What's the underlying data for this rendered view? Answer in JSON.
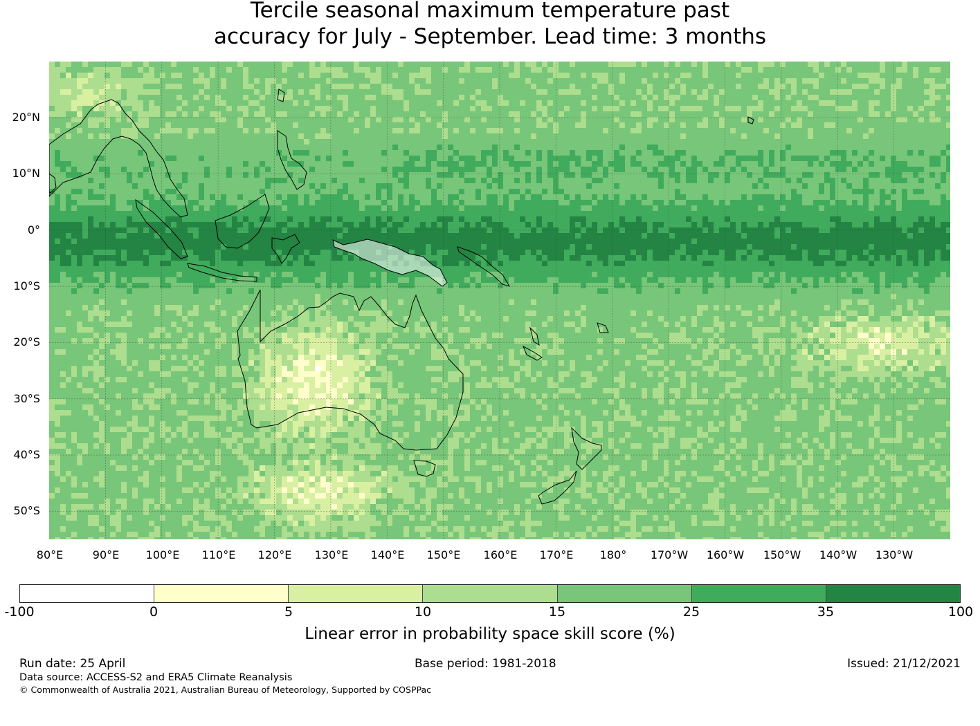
{
  "title": {
    "line1": "Tercile seasonal maximum temperature past",
    "line2": "accuracy for July - September. Lead time: 3 months"
  },
  "map": {
    "latitude_labels": [
      "20°N",
      "10°N",
      "0°",
      "10°S",
      "20°S",
      "30°S",
      "40°S",
      "50°S"
    ],
    "longitude_labels": [
      "80°E",
      "90°E",
      "100°E",
      "110°E",
      "120°E",
      "130°E",
      "140°E",
      "150°E",
      "160°E",
      "170°E",
      "180°",
      "170°W",
      "160°W",
      "150°W",
      "140°W",
      "130°W"
    ],
    "lat_range": [
      -55,
      30
    ],
    "lon_range": [
      80,
      240
    ],
    "gridlines": true,
    "coastlines": true,
    "levels": [
      -100,
      0,
      5,
      10,
      15,
      25,
      35,
      100
    ],
    "level_colors": [
      "#ffffff",
      "#ffffcc",
      "#d9f0a3",
      "#addd8e",
      "#78c679",
      "#41ab5d",
      "#238443"
    ]
  },
  "colorbar": {
    "ticks": [
      "-100",
      "0",
      "5",
      "10",
      "15",
      "25",
      "35",
      "100"
    ],
    "label": "Linear error in probability space skill score (%)"
  },
  "footer": {
    "run_date": "Run date: 25 April",
    "base_period": "Base period: 1981-2018",
    "issued": "Issued: 21/12/2021",
    "data_source": "Data source: ACCESS-S2 and ERA5 Climate Reanalysis",
    "copyright": "© Commonwealth of Australia 2021, Australian Bureau of Meteorology, Supported by COSPPac"
  }
}
